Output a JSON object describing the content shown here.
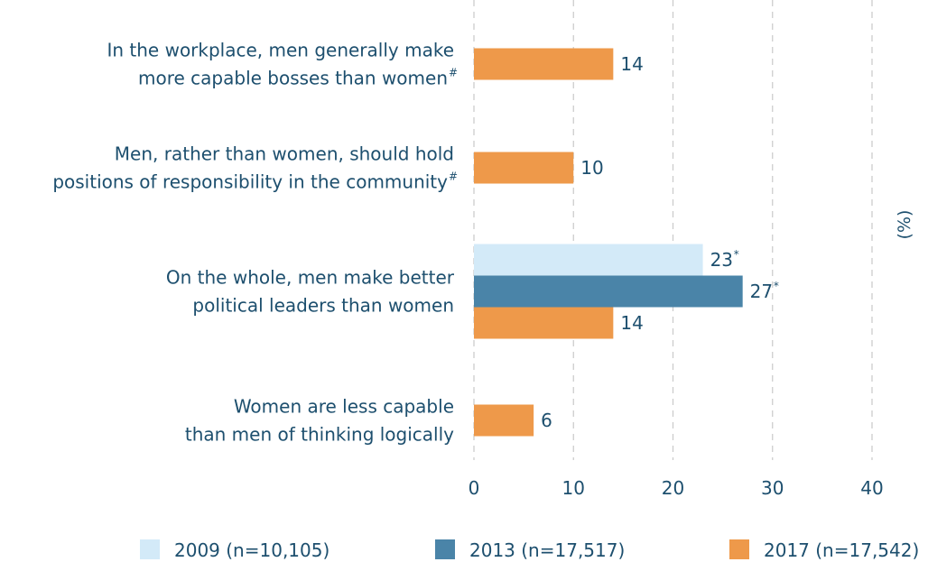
{
  "chart_data": {
    "type": "bar",
    "orientation": "horizontal",
    "unit_label": "(%)",
    "categories": [
      {
        "lines": [
          "In the workplace, men generally make",
          "more capable bosses than women"
        ],
        "mark": "#"
      },
      {
        "lines": [
          "Men, rather than women, should hold",
          "positions of responsibility in the community"
        ],
        "mark": "#"
      },
      {
        "lines": [
          "On the whole, men make better",
          "political leaders than women"
        ],
        "mark": ""
      },
      {
        "lines": [
          "Women are less capable",
          "than men of thinking logically"
        ],
        "mark": ""
      }
    ],
    "series": [
      {
        "name": "2009 (n=10,105)",
        "color": "#d3eaf8",
        "values": [
          null,
          null,
          23,
          null
        ],
        "marks": [
          null,
          null,
          "*",
          null
        ]
      },
      {
        "name": "2013 (n=17,517)",
        "color": "#4a84a8",
        "values": [
          null,
          null,
          27,
          null
        ],
        "marks": [
          null,
          null,
          "*",
          null
        ]
      },
      {
        "name": "2017 (n=17,542)",
        "color": "#ee994a",
        "values": [
          14,
          10,
          14,
          6
        ],
        "marks": [
          null,
          null,
          null,
          null
        ]
      }
    ],
    "xlim": [
      0,
      40
    ],
    "xticks": [
      0,
      10,
      20,
      30,
      40
    ],
    "grid": true,
    "legend_position": "bottom"
  }
}
